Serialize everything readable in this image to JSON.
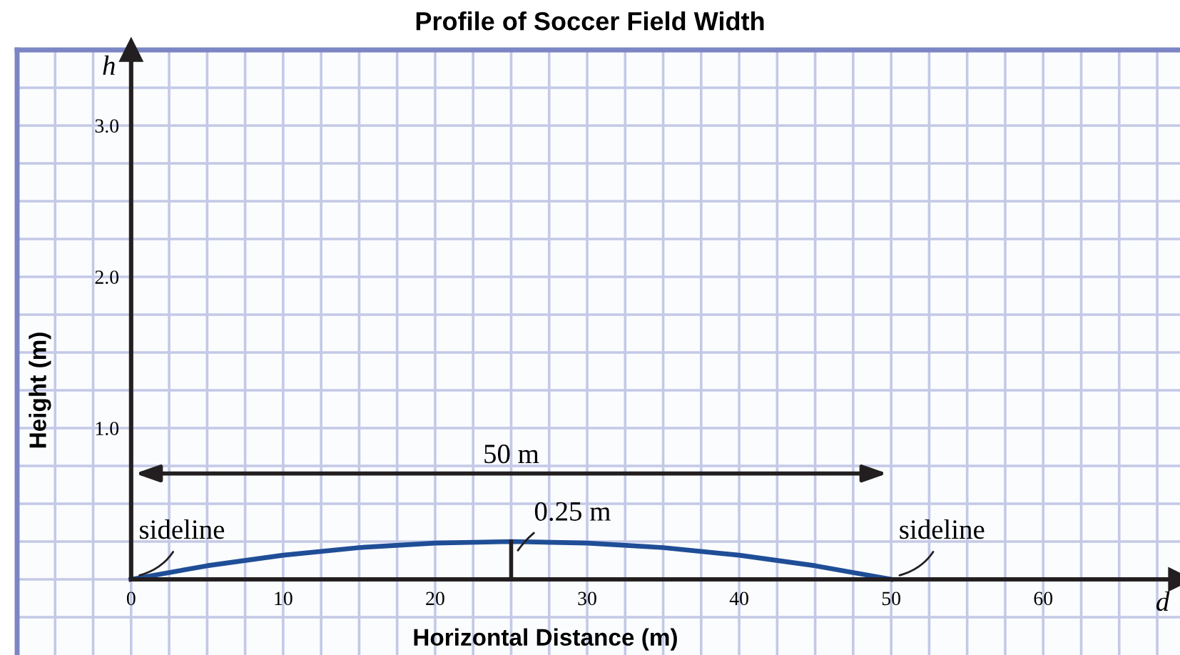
{
  "chart_data": {
    "type": "line",
    "title": "Profile of Soccer Field Width",
    "xlabel": "Horizontal Distance (m)",
    "ylabel": "Height (m)",
    "x": [
      0,
      5,
      10,
      15,
      20,
      25,
      30,
      35,
      40,
      45,
      50
    ],
    "series": [
      {
        "color": "#1f4e97",
        "values": [
          0,
          0.09,
          0.16,
          0.21,
          0.24,
          0.25,
          0.24,
          0.21,
          0.16,
          0.09,
          0
        ]
      }
    ],
    "xlim": [
      -7.5,
      69
    ],
    "ylim": [
      -0.5,
      3.5
    ],
    "xticks": [
      {
        "value": -5,
        "label": null
      },
      {
        "value": -2.5,
        "label": null
      },
      0,
      {
        "value": 2.5,
        "label": null
      },
      {
        "value": 5,
        "label": null
      },
      {
        "value": 7.5,
        "label": null
      },
      10,
      {
        "value": 12.5,
        "label": null
      },
      {
        "value": 15,
        "label": null
      },
      {
        "value": 17.5,
        "label": null
      },
      20,
      {
        "value": 22.5,
        "label": null
      },
      {
        "value": 25,
        "label": null
      },
      {
        "value": 27.5,
        "label": null
      },
      30,
      {
        "value": 32.5,
        "label": null
      },
      {
        "value": 35,
        "label": null
      },
      {
        "value": 37.5,
        "label": null
      },
      40,
      {
        "value": 42.5,
        "label": null
      },
      {
        "value": 45,
        "label": null
      },
      {
        "value": 47.5,
        "label": null
      },
      50,
      {
        "value": 52.5,
        "label": null
      },
      {
        "value": 55,
        "label": null
      },
      {
        "value": 57.5,
        "label": null
      },
      60,
      {
        "value": 62.5,
        "label": null
      },
      {
        "value": 65,
        "label": null
      },
      {
        "value": 67.5,
        "label": null
      }
    ],
    "yticks": [
      {
        "value": -0.25,
        "label": null
      },
      {
        "value": 0,
        "label": null
      },
      {
        "value": 0.25,
        "label": null
      },
      {
        "value": 0.5,
        "label": null
      },
      {
        "value": 0.75,
        "label": null
      },
      {
        "value": 1,
        "label": "1.0"
      },
      {
        "value": 1.25,
        "label": null
      },
      {
        "value": 1.5,
        "label": null
      },
      {
        "value": 1.75,
        "label": null
      },
      {
        "value": 2,
        "label": "2.0"
      },
      {
        "value": 2.25,
        "label": null
      },
      {
        "value": 2.5,
        "label": null
      },
      {
        "value": 2.75,
        "label": null
      },
      {
        "value": 3,
        "label": "3.0"
      },
      {
        "value": 3.25,
        "label": null
      }
    ],
    "grid": true,
    "annotations": [
      "h",
      "d",
      "50 m",
      {
        "text": "0.25 m",
        "x": 25,
        "y": 0.25
      },
      {
        "text": "sideline",
        "x": 0,
        "y": 0
      },
      {
        "text": "sideline",
        "x": 50,
        "y": 0
      }
    ]
  }
}
